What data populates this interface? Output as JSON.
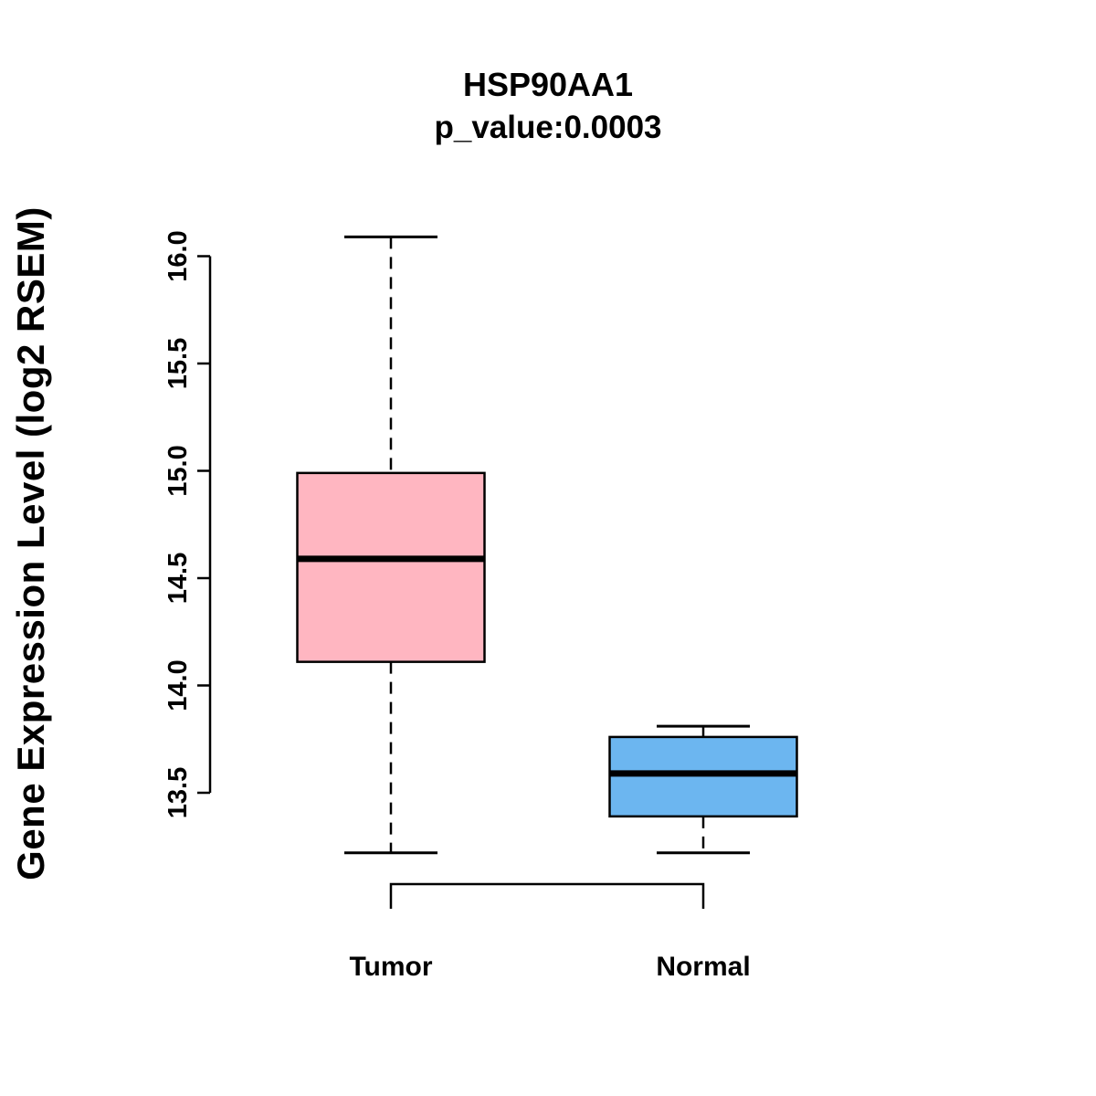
{
  "chart_data": {
    "type": "boxplot",
    "title": "HSP90AA1",
    "subtitle": "p_value:0.0003",
    "ylabel": "Gene Expression Level (log2 RSEM)",
    "xlabel": "",
    "legend": "none",
    "grid": false,
    "ylim": [
      13.1,
      16.2
    ],
    "yticks": [
      {
        "value": 13.5,
        "label": "13.5"
      },
      {
        "value": 14.0,
        "label": "14.0"
      },
      {
        "value": 14.5,
        "label": "14.5"
      },
      {
        "value": 15.0,
        "label": "15.0"
      },
      {
        "value": 15.5,
        "label": "15.5"
      },
      {
        "value": 16.0,
        "label": "16.0"
      }
    ],
    "categories": [
      "Tumor",
      "Normal"
    ],
    "series": [
      {
        "name": "Tumor",
        "color": "#FFB6C1",
        "whisker_low": 13.22,
        "q1": 14.11,
        "median": 14.59,
        "q3": 14.99,
        "whisker_high": 16.09
      },
      {
        "name": "Normal",
        "color": "#6CB6F0",
        "whisker_low": 13.22,
        "q1": 13.39,
        "median": 13.59,
        "q3": 13.76,
        "whisker_high": 13.81
      }
    ],
    "colors": {
      "axis": "#000000",
      "text": "#000000",
      "background": "#ffffff"
    }
  }
}
